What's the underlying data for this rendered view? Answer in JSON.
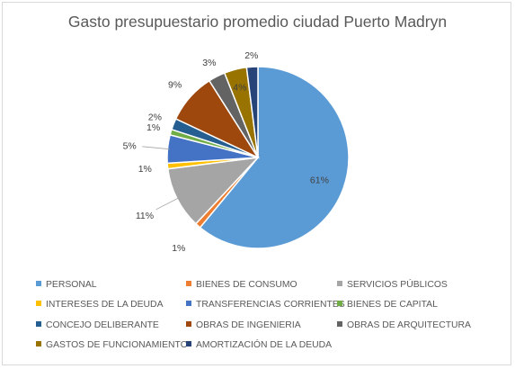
{
  "chart_data": {
    "type": "pie",
    "title": "Gasto presupuestario promedio ciudad Puerto Madryn",
    "legend_position": "bottom",
    "slices": [
      {
        "label": "PERSONAL",
        "value": 61,
        "display": "61%",
        "color": "#5b9bd5"
      },
      {
        "label": "BIENES DE CONSUMO",
        "value": 1,
        "display": "1%",
        "color": "#ed7d31"
      },
      {
        "label": "SERVICIOS PÚBLICOS",
        "value": 11,
        "display": "11%",
        "color": "#a5a5a5"
      },
      {
        "label": "INTERESES DE LA DEUDA",
        "value": 1,
        "display": "1%",
        "color": "#ffc000"
      },
      {
        "label": "TRANSFERENCIAS CORRIENTES",
        "value": 5,
        "display": "5%",
        "color": "#4472c4"
      },
      {
        "label": "BIENES DE CAPITAL",
        "value": 1,
        "display": "1%",
        "color": "#70ad47"
      },
      {
        "label": "CONCEJO DELIBERANTE",
        "value": 2,
        "display": "2%",
        "color": "#255e91"
      },
      {
        "label": "OBRAS DE INGENIERIA",
        "value": 9,
        "display": "9%",
        "color": "#9e480e"
      },
      {
        "label": "OBRAS DE ARQUITECTURA",
        "value": 3,
        "display": "3%",
        "color": "#636363"
      },
      {
        "label": "GASTOS DE FUNCIONAMIENTO",
        "value": 4,
        "display": "4%",
        "color": "#997300"
      },
      {
        "label": "AMORTIZACIÓN DE LA DEUDA",
        "value": 2,
        "display": "2%",
        "color": "#264478"
      }
    ]
  }
}
